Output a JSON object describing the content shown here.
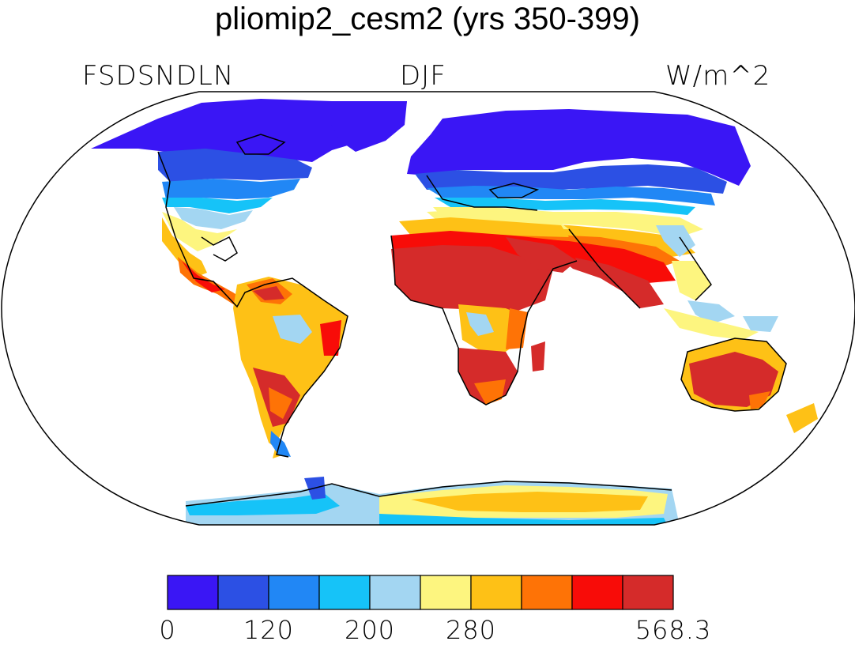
{
  "title": "pliomip2_cesm2 (yrs 350-399)",
  "left_label": "FSDSNDLN",
  "center_label": "DJF",
  "right_label": "W/m^2",
  "colorbar": {
    "colors": [
      "#3a16f5",
      "#2c50e4",
      "#2187f5",
      "#16c3f8",
      "#a3d6f2",
      "#fdf57f",
      "#fec116",
      "#fe7306",
      "#f80c08",
      "#d52b2a"
    ],
    "tick_labels": [
      "0",
      "120",
      "200",
      "280",
      "568.3"
    ],
    "tick_boundaries": [
      0,
      2,
      4,
      6,
      10
    ]
  },
  "map": {
    "projection": "Robinson",
    "ocean_color": "#ffffff",
    "coastline_color": "#000000"
  }
}
